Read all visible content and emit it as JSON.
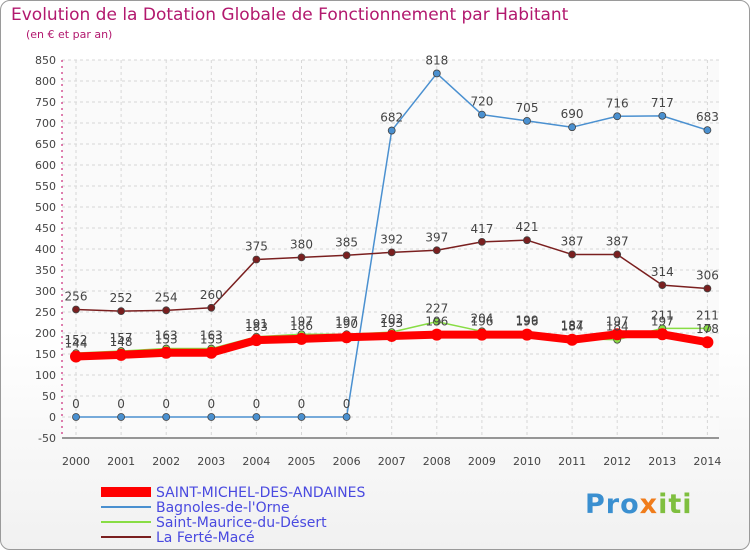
{
  "header": {
    "title": "Evolution de la Dotation Globale de Fonctionnement par Habitant",
    "subtitle": "(en € et par an)"
  },
  "logo": {
    "p1": "Pro",
    "p2": "x",
    "p3": "iti"
  },
  "chart_data": {
    "type": "line",
    "title": "Evolution de la Dotation Globale de Fonctionnement par Habitant",
    "subtitle": "(en € et par an)",
    "xlabel": "",
    "ylabel": "",
    "categories": [
      "2000",
      "2001",
      "2002",
      "2003",
      "2004",
      "2005",
      "2006",
      "2007",
      "2008",
      "2009",
      "2010",
      "2011",
      "2012",
      "2013",
      "2014"
    ],
    "ylim": [
      -50,
      850
    ],
    "yticks": [
      -50,
      0,
      50,
      100,
      150,
      200,
      250,
      300,
      350,
      400,
      450,
      500,
      550,
      600,
      650,
      700,
      750,
      800,
      850
    ],
    "grid": true,
    "legend_position": "bottom-left",
    "series": [
      {
        "name": "SAINT-MICHEL-DES-ANDAINES",
        "color": "#ff0000",
        "values": [
          144,
          148,
          153,
          153,
          183,
          186,
          190,
          193,
          196,
          196,
          196,
          184,
          197,
          197,
          178
        ],
        "labels": [
          "144",
          "148",
          "153",
          "153",
          "183",
          "186",
          "190",
          "193",
          "196",
          "196",
          "196",
          "184",
          "197",
          "197",
          "178"
        ]
      },
      {
        "name": "Bagnoles-de-l'Orne",
        "color": "#4a90d0",
        "values": [
          0,
          0,
          0,
          0,
          0,
          0,
          0,
          682,
          818,
          720,
          705,
          690,
          716,
          717,
          683
        ],
        "labels": [
          "0",
          "0",
          "0",
          "0",
          "0",
          "0",
          "0",
          "682",
          "818",
          "720",
          "705",
          "690",
          "716",
          "717",
          "683"
        ]
      },
      {
        "name": "Saint-Maurice-du-Désert",
        "color": "#88dd44",
        "values": [
          152,
          157,
          163,
          163,
          191,
          197,
          197,
          202,
          227,
          204,
          199,
          187,
          184,
          211,
          211
        ],
        "labels": [
          "152",
          "157",
          "163",
          "163",
          "191",
          "197",
          "197",
          "202",
          "227",
          "204",
          "199",
          "187",
          "184",
          "211",
          "211"
        ]
      },
      {
        "name": "La Ferté-Macé",
        "color": "#7a1f1f",
        "values": [
          256,
          252,
          254,
          260,
          375,
          380,
          385,
          392,
          397,
          417,
          421,
          387,
          387,
          314,
          306
        ],
        "labels": [
          "256",
          "252",
          "254",
          "260",
          "375",
          "380",
          "385",
          "392",
          "397",
          "417",
          "421",
          "387",
          "387",
          "314",
          "306"
        ]
      }
    ]
  }
}
